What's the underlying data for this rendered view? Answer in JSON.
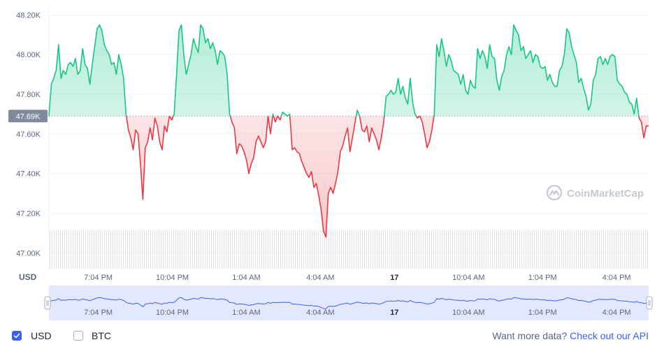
{
  "chart_data": {
    "type": "area",
    "baseline": 47690,
    "baseline_label": "47.69K",
    "ylim": [
      46920,
      48240
    ],
    "y_ticks": [
      47000,
      47200,
      47400,
      47600,
      47800,
      48000,
      48200
    ],
    "y_tick_labels": [
      "47.00K",
      "47.20K",
      "47.40K",
      "47.60K",
      "47.80K",
      "48.00K",
      "48.20K"
    ],
    "xlabel": "USD",
    "x_tick_labels": [
      "7:04 PM",
      "10:04 PM",
      "1:04 AM",
      "4:04 AM",
      "17",
      "10:04 AM",
      "1:04 PM",
      "4:04 PM"
    ],
    "x_tick_hours": [
      2,
      5,
      8,
      11,
      14,
      17,
      20,
      23
    ],
    "x_range_hours": [
      0,
      24.3
    ],
    "series": [
      {
        "values": [
          47690,
          47850,
          47880,
          47920,
          48050,
          47880,
          47920,
          47900,
          47950,
          47960,
          47940,
          47980,
          47900,
          47920,
          48030,
          47950,
          47930,
          47850,
          47950,
          48040,
          48130,
          48150,
          48120,
          48050,
          48020,
          48000,
          47950,
          47960,
          47900,
          48000,
          47950,
          47880,
          47700,
          47620,
          47580,
          47520,
          47620,
          47600,
          47450,
          47270,
          47530,
          47560,
          47630,
          47570,
          47680,
          47640,
          47560,
          47520,
          47640,
          47610,
          47690,
          47670,
          47700,
          47900,
          48120,
          48150,
          48000,
          47900,
          47950,
          48000,
          48080,
          48040,
          48010,
          48150,
          48130,
          48060,
          48080,
          48030,
          48060,
          48020,
          47950,
          48020,
          48010,
          47990,
          47900,
          47700,
          47660,
          47630,
          47500,
          47550,
          47540,
          47510,
          47470,
          47400,
          47450,
          47480,
          47560,
          47590,
          47560,
          47530,
          47560,
          47690,
          47600,
          47700,
          47660,
          47690,
          47670,
          47710,
          47700,
          47690,
          47700,
          47520,
          47530,
          47510,
          47500,
          47460,
          47430,
          47400,
          47380,
          47410,
          47330,
          47350,
          47290,
          47220,
          47110,
          47080,
          47300,
          47330,
          47300,
          47350,
          47410,
          47510,
          47540,
          47590,
          47630,
          47510,
          47580,
          47650,
          47720,
          47690,
          47620,
          47610,
          47640,
          47560,
          47630,
          47600,
          47570,
          47520,
          47580,
          47660,
          47790,
          47800,
          47820,
          47800,
          47810,
          47880,
          47800,
          47840,
          47780,
          47750,
          47880,
          47760,
          47700,
          47680,
          47690,
          47660,
          47600,
          47530,
          47560,
          47620,
          47700,
          48050,
          47990,
          48080,
          48020,
          47940,
          48000,
          47970,
          47920,
          47910,
          47900,
          47850,
          47900,
          47820,
          47800,
          47870,
          47840,
          47830,
          48030,
          47980,
          48020,
          47990,
          47930,
          48050,
          47990,
          47980,
          47870,
          47820,
          47890,
          47920,
          48000,
          48040,
          48000,
          48150,
          48120,
          48100,
          48020,
          48040,
          47980,
          48000,
          48020,
          47960,
          48000,
          47990,
          47940,
          47930,
          47940,
          47870,
          47900,
          47860,
          47840,
          47840,
          47920,
          47940,
          48000,
          48130,
          48110,
          48040,
          48000,
          47960,
          47860,
          47880,
          47830,
          47790,
          47720,
          47750,
          47870,
          47900,
          47980,
          47990,
          47950,
          47980,
          47950,
          47990,
          48000,
          47990,
          47870,
          47850,
          47840,
          47810,
          47800,
          47760,
          47750,
          47700,
          47780,
          47680,
          47660,
          47580,
          47640,
          47640
        ]
      }
    ],
    "navigator_labels": [
      "7:04 PM",
      "10:04 PM",
      "1:04 AM",
      "4:04 AM",
      "17",
      "10:04 AM",
      "1:04 PM",
      "4:04 PM"
    ],
    "colors": {
      "up": "#16c784",
      "down": "#ea3943",
      "navigator_line": "#3861fb",
      "navigator_fill": "#e4e8ff",
      "grid": "#eff2f5",
      "axis_text": "#58667e",
      "volume": "#dde1e6"
    }
  },
  "watermark": "CoinMarketCap",
  "footer": {
    "usd_label": "USD",
    "btc_label": "BTC",
    "usd_checked": true,
    "btc_checked": false,
    "more_text": "Want more data?",
    "api_link": "Check out our API"
  }
}
